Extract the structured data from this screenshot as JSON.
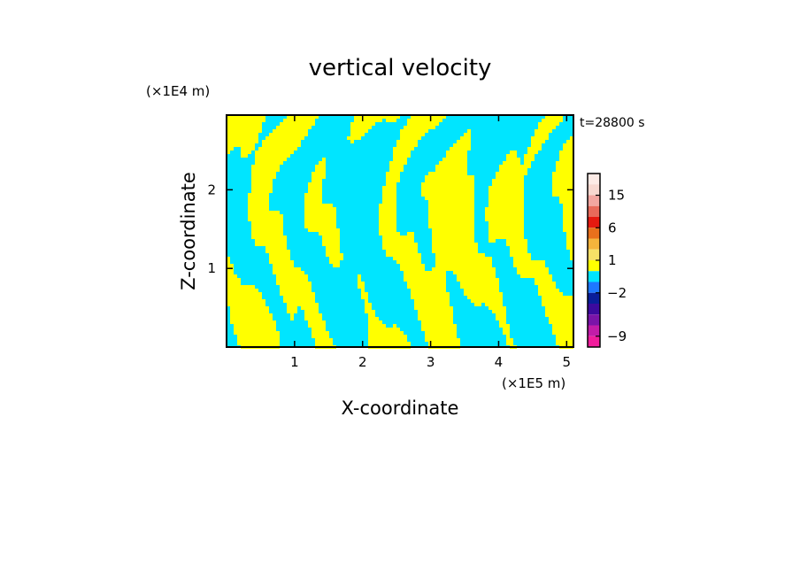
{
  "chart_data": {
    "type": "heatmap",
    "title": "vertical velocity",
    "xlabel": "X-coordinate",
    "ylabel": "Z-coordinate",
    "x_scale_label": "(×1E5 m)",
    "y_scale_label": "(×1E4 m)",
    "time_label": "t=28800 s",
    "xlim": [
      0,
      5.1
    ],
    "ylim": [
      0,
      2.95
    ],
    "x_ticks": [
      1,
      2,
      3,
      4,
      5
    ],
    "y_ticks": [
      1,
      2
    ],
    "colorbar": {
      "ticks": [
        15,
        6,
        1,
        -2,
        -9
      ],
      "levels": [
        {
          "lower": 18,
          "upper": 21,
          "color": "#fcebe6"
        },
        {
          "lower": 15,
          "upper": 18,
          "color": "#f7d8d0"
        },
        {
          "lower": 12,
          "upper": 15,
          "color": "#f2a6a0"
        },
        {
          "lower": 9,
          "upper": 12,
          "color": "#e86a5a"
        },
        {
          "lower": 6,
          "upper": 9,
          "color": "#e51a10"
        },
        {
          "lower": 3,
          "upper": 6,
          "color": "#e8701c"
        },
        {
          "lower": 2,
          "upper": 3,
          "color": "#f4b43c"
        },
        {
          "lower": 1,
          "upper": 2,
          "color": "#f7e066"
        },
        {
          "lower": 0,
          "upper": 1,
          "color": "#ffff00"
        },
        {
          "lower": -1,
          "upper": 0,
          "color": "#00e5ff"
        },
        {
          "lower": -2,
          "upper": -1,
          "color": "#1e78ff"
        },
        {
          "lower": -3,
          "upper": -2,
          "color": "#0a1e9a"
        },
        {
          "lower": -5,
          "upper": -3,
          "color": "#3c0a9e"
        },
        {
          "lower": -7,
          "upper": -5,
          "color": "#7a14a8"
        },
        {
          "lower": -9,
          "upper": -7,
          "color": "#c21ca8"
        },
        {
          "lower": -12,
          "upper": -9,
          "color": "#f01c9c"
        }
      ]
    },
    "field_colors": {
      "positive": "#ffff00",
      "negative": "#00e5ff"
    }
  }
}
